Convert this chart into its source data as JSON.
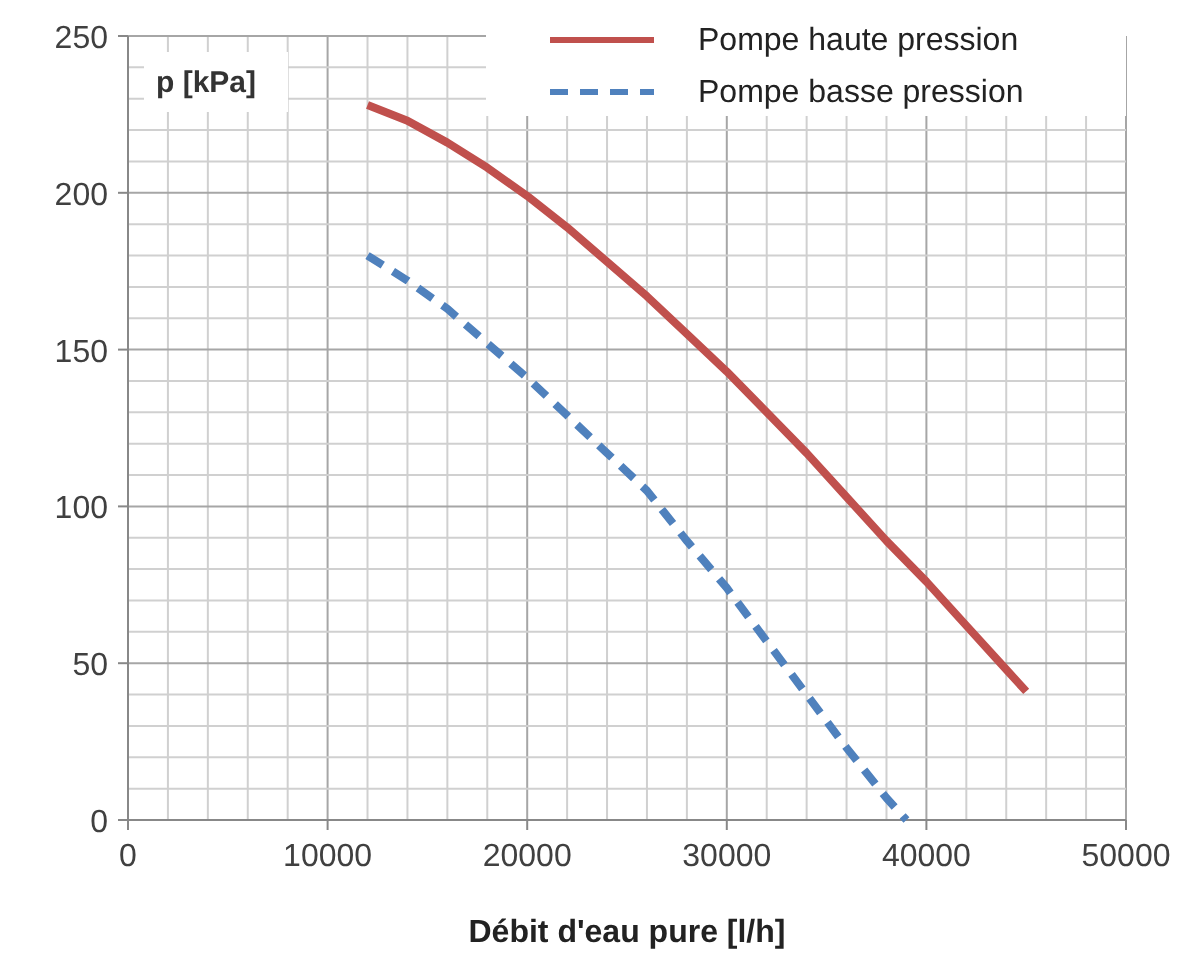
{
  "chart_data": {
    "type": "line",
    "xlabel": "Débit d'eau pure [l/h]",
    "ylabel": "p [kPa]",
    "xlim": [
      0,
      50000
    ],
    "ylim": [
      0,
      250
    ],
    "xticks": [
      0,
      {
        "value": 2000,
        "label": null
      },
      {
        "value": 4000,
        "label": null
      },
      {
        "value": 6000,
        "label": null
      },
      {
        "value": 8000,
        "label": null
      },
      10000,
      {
        "value": 12000,
        "label": null
      },
      {
        "value": 14000,
        "label": null
      },
      {
        "value": 16000,
        "label": null
      },
      {
        "value": 18000,
        "label": null
      },
      20000,
      {
        "value": 22000,
        "label": null
      },
      {
        "value": 24000,
        "label": null
      },
      {
        "value": 26000,
        "label": null
      },
      {
        "value": 28000,
        "label": null
      },
      30000,
      {
        "value": 32000,
        "label": null
      },
      {
        "value": 34000,
        "label": null
      },
      {
        "value": 36000,
        "label": null
      },
      {
        "value": 38000,
        "label": null
      },
      40000,
      {
        "value": 42000,
        "label": null
      },
      {
        "value": 44000,
        "label": null
      },
      {
        "value": 46000,
        "label": null
      },
      {
        "value": 48000,
        "label": null
      },
      50000
    ],
    "yticks": [
      0,
      {
        "value": 10,
        "label": null
      },
      {
        "value": 20,
        "label": null
      },
      {
        "value": 30,
        "label": null
      },
      {
        "value": 40,
        "label": null
      },
      50,
      {
        "value": 60,
        "label": null
      },
      {
        "value": 70,
        "label": null
      },
      {
        "value": 80,
        "label": null
      },
      {
        "value": 90,
        "label": null
      },
      100,
      {
        "value": 110,
        "label": null
      },
      {
        "value": 120,
        "label": null
      },
      {
        "value": 130,
        "label": null
      },
      {
        "value": 140,
        "label": null
      },
      150,
      {
        "value": 160,
        "label": null
      },
      {
        "value": 170,
        "label": null
      },
      {
        "value": 180,
        "label": null
      },
      {
        "value": 190,
        "label": null
      },
      200,
      {
        "value": 210,
        "label": null
      },
      {
        "value": 220,
        "label": null
      },
      {
        "value": 230,
        "label": null
      },
      {
        "value": 240,
        "label": null
      },
      250
    ],
    "grid": true,
    "legend": "top right",
    "series": [
      {
        "name": "Pompe haute pression",
        "color": "#c0504d",
        "line_style": "solid",
        "x": [
          12000,
          14000,
          16000,
          18000,
          20000,
          22000,
          24000,
          26000,
          28000,
          30000,
          32000,
          34000,
          36000,
          38000,
          40000,
          42000,
          44000,
          45000
        ],
        "values": [
          228,
          223,
          216,
          208,
          199,
          189,
          178,
          167,
          155,
          143,
          130,
          117,
          103,
          89,
          76,
          62,
          48,
          41
        ]
      },
      {
        "name": "Pompe basse pression",
        "color": "#4f81bd",
        "line_style": "dashed",
        "x": [
          12000,
          14000,
          16000,
          18000,
          20000,
          22000,
          24000,
          26000,
          28000,
          30000,
          32000,
          34000,
          36000,
          38000,
          39000
        ],
        "values": [
          180,
          172,
          163,
          152,
          141,
          129,
          117,
          105,
          89,
          74,
          57,
          40,
          23,
          7,
          0
        ]
      }
    ]
  }
}
